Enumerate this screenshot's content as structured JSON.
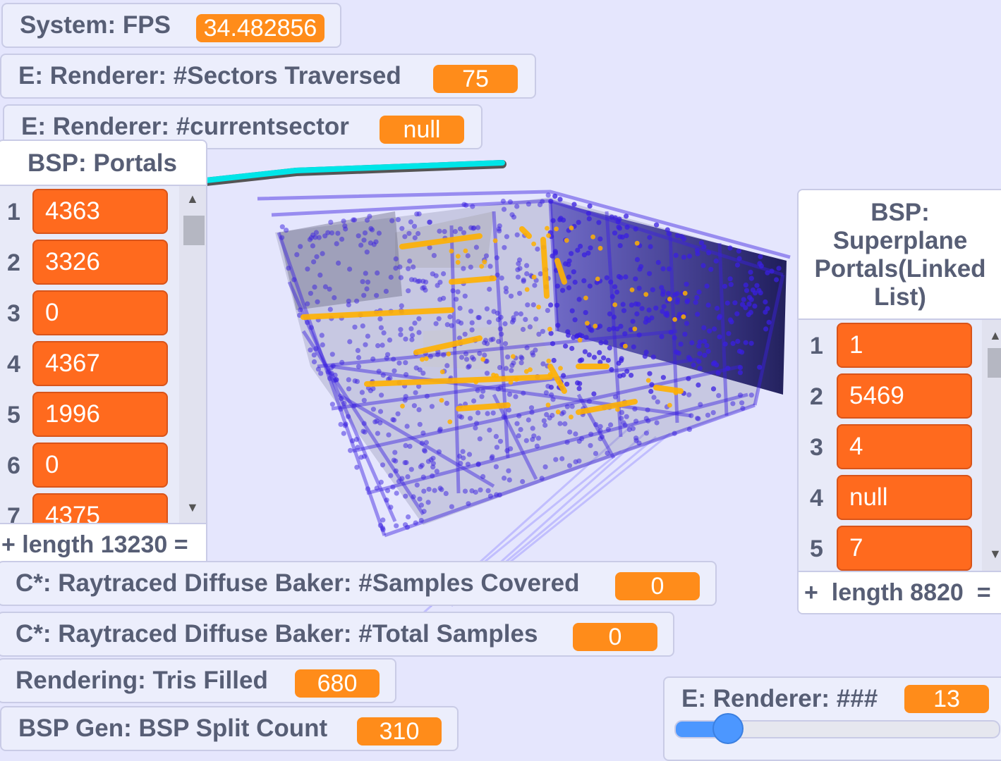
{
  "monitors": {
    "fps": {
      "label": "System: FPS",
      "value": "34.482856"
    },
    "sectors_traversed": {
      "label": "E: Renderer: #Sectors Traversed",
      "value": "75"
    },
    "current_sector": {
      "label": "E: Renderer: #currentsector",
      "value": "null"
    },
    "samples_covered": {
      "label": "C*: Raytraced Diffuse Baker: #Samples Covered",
      "value": "0"
    },
    "total_samples": {
      "label": "C*: Raytraced Diffuse Baker: #Total Samples",
      "value": "0"
    },
    "tris_filled": {
      "label": "Rendering: Tris Filled",
      "value": "680"
    },
    "bsp_split_count": {
      "label": "BSP Gen: BSP Split Count",
      "value": "310"
    }
  },
  "portals_list": {
    "title": "BSP: Portals",
    "items": [
      {
        "index": "1",
        "value": "4363"
      },
      {
        "index": "2",
        "value": "3326"
      },
      {
        "index": "3",
        "value": "0"
      },
      {
        "index": "4",
        "value": "4367"
      },
      {
        "index": "5",
        "value": "1996"
      },
      {
        "index": "6",
        "value": "0"
      },
      {
        "index": "7",
        "value": "4375"
      }
    ],
    "footer": "+ length 13230 ="
  },
  "superplane_list": {
    "title_lines": [
      "BSP:",
      "Superplane",
      "Portals(Linked",
      "List)"
    ],
    "items": [
      {
        "index": "1",
        "value": "1"
      },
      {
        "index": "2",
        "value": "5469"
      },
      {
        "index": "3",
        "value": "4"
      },
      {
        "index": "4",
        "value": "null"
      },
      {
        "index": "5",
        "value": "7"
      }
    ],
    "footer": "+  length 8820  ="
  },
  "slider_monitor": {
    "label": "E: Renderer: ###",
    "value": "13",
    "position_fraction": 0.13
  },
  "colors": {
    "stage": "#e5e6fd",
    "monitor_value": "#ff8c1a",
    "list_cell": "#ff6a1e",
    "wireframe": "#3a1fe0",
    "highlight": "#ffb000",
    "cyan_line": "#00e5e8",
    "slider": "#4c97ff"
  }
}
